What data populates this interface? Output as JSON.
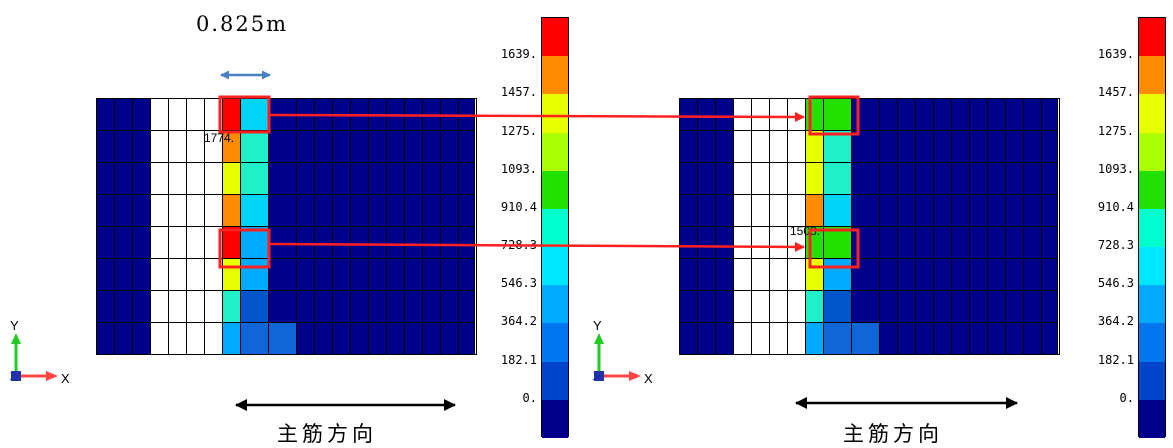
{
  "dimension_label": "0.825m",
  "direction_label": "主筋方向",
  "axis": {
    "x": "X",
    "y": "Y",
    "z": "Z"
  },
  "left_panel": {
    "value_label": "1774."
  },
  "right_panel": {
    "value_label": "1503."
  },
  "legend": {
    "ticks": [
      "1639.",
      "1457.",
      "1275.",
      "1093.",
      "910.4",
      "728.3",
      "546.3",
      "364.2",
      "182.1",
      "0."
    ],
    "colors": [
      "#ff0000",
      "#ff8c00",
      "#e8ff00",
      "#aaff00",
      "#22e000",
      "#00ffcc",
      "#00e8ff",
      "#00aaff",
      "#0077ee",
      "#0044cc",
      "#00008b"
    ]
  },
  "colors": {
    "navy": "#00008b",
    "white": "#ffffff",
    "red": "#ff0000",
    "orange": "#ff8c00",
    "yellow": "#e8ff00",
    "green": "#22e000",
    "aqua": "#20f0c8",
    "cyan": "#00d4f8",
    "sky": "#00aaff",
    "blue": "#0055cc",
    "mid": "#1066d8",
    "highlight": "#ff2020",
    "arrow_blue": "#4a7fc1"
  },
  "mesh_left": {
    "rows": [
      [
        "navy",
        "navy",
        "navy",
        "white",
        "white",
        "white",
        "white",
        "red",
        "cyan",
        "navy",
        "navy",
        "navy",
        "navy",
        "navy",
        "navy",
        "navy",
        "navy",
        "navy",
        "navy",
        "navy"
      ],
      [
        "navy",
        "navy",
        "navy",
        "white",
        "white",
        "white",
        "white",
        "orange",
        "aqua",
        "navy",
        "navy",
        "navy",
        "navy",
        "navy",
        "navy",
        "navy",
        "navy",
        "navy",
        "navy",
        "navy"
      ],
      [
        "navy",
        "navy",
        "navy",
        "white",
        "white",
        "white",
        "white",
        "yellow",
        "aqua",
        "navy",
        "navy",
        "navy",
        "navy",
        "navy",
        "navy",
        "navy",
        "navy",
        "navy",
        "navy",
        "navy"
      ],
      [
        "navy",
        "navy",
        "navy",
        "white",
        "white",
        "white",
        "white",
        "orange",
        "cyan",
        "navy",
        "navy",
        "navy",
        "navy",
        "navy",
        "navy",
        "navy",
        "navy",
        "navy",
        "navy",
        "navy"
      ],
      [
        "navy",
        "navy",
        "navy",
        "white",
        "white",
        "white",
        "white",
        "red",
        "sky",
        "navy",
        "navy",
        "navy",
        "navy",
        "navy",
        "navy",
        "navy",
        "navy",
        "navy",
        "navy",
        "navy"
      ],
      [
        "navy",
        "navy",
        "navy",
        "white",
        "white",
        "white",
        "white",
        "yellow",
        "sky",
        "navy",
        "navy",
        "navy",
        "navy",
        "navy",
        "navy",
        "navy",
        "navy",
        "navy",
        "navy",
        "navy"
      ],
      [
        "navy",
        "navy",
        "navy",
        "white",
        "white",
        "white",
        "white",
        "aqua",
        "blue",
        "navy",
        "navy",
        "navy",
        "navy",
        "navy",
        "navy",
        "navy",
        "navy",
        "navy",
        "navy",
        "navy"
      ],
      [
        "navy",
        "navy",
        "navy",
        "white",
        "white",
        "white",
        "white",
        "sky",
        "mid",
        "mid",
        "navy",
        "navy",
        "navy",
        "navy",
        "navy",
        "navy",
        "navy",
        "navy",
        "navy",
        "navy"
      ]
    ]
  },
  "mesh_right": {
    "rows": [
      [
        "navy",
        "navy",
        "navy",
        "white",
        "white",
        "white",
        "white",
        "green",
        "green",
        "navy",
        "navy",
        "navy",
        "navy",
        "navy",
        "navy",
        "navy",
        "navy",
        "navy",
        "navy",
        "navy"
      ],
      [
        "navy",
        "navy",
        "navy",
        "white",
        "white",
        "white",
        "white",
        "yellow",
        "aqua",
        "navy",
        "navy",
        "navy",
        "navy",
        "navy",
        "navy",
        "navy",
        "navy",
        "navy",
        "navy",
        "navy"
      ],
      [
        "navy",
        "navy",
        "navy",
        "white",
        "white",
        "white",
        "white",
        "yellow",
        "aqua",
        "navy",
        "navy",
        "navy",
        "navy",
        "navy",
        "navy",
        "navy",
        "navy",
        "navy",
        "navy",
        "navy"
      ],
      [
        "navy",
        "navy",
        "navy",
        "white",
        "white",
        "white",
        "white",
        "orange",
        "cyan",
        "navy",
        "navy",
        "navy",
        "navy",
        "navy",
        "navy",
        "navy",
        "navy",
        "navy",
        "navy",
        "navy"
      ],
      [
        "navy",
        "navy",
        "navy",
        "white",
        "white",
        "white",
        "white",
        "green",
        "green",
        "navy",
        "navy",
        "navy",
        "navy",
        "navy",
        "navy",
        "navy",
        "navy",
        "navy",
        "navy",
        "navy"
      ],
      [
        "navy",
        "navy",
        "navy",
        "white",
        "white",
        "white",
        "white",
        "yellow",
        "sky",
        "navy",
        "navy",
        "navy",
        "navy",
        "navy",
        "navy",
        "navy",
        "navy",
        "navy",
        "navy",
        "navy"
      ],
      [
        "navy",
        "navy",
        "navy",
        "white",
        "white",
        "white",
        "white",
        "aqua",
        "blue",
        "navy",
        "navy",
        "navy",
        "navy",
        "navy",
        "navy",
        "navy",
        "navy",
        "navy",
        "navy",
        "navy"
      ],
      [
        "navy",
        "navy",
        "navy",
        "white",
        "white",
        "white",
        "white",
        "sky",
        "mid",
        "mid",
        "navy",
        "navy",
        "navy",
        "navy",
        "navy",
        "navy",
        "navy",
        "navy",
        "navy",
        "navy"
      ]
    ]
  }
}
